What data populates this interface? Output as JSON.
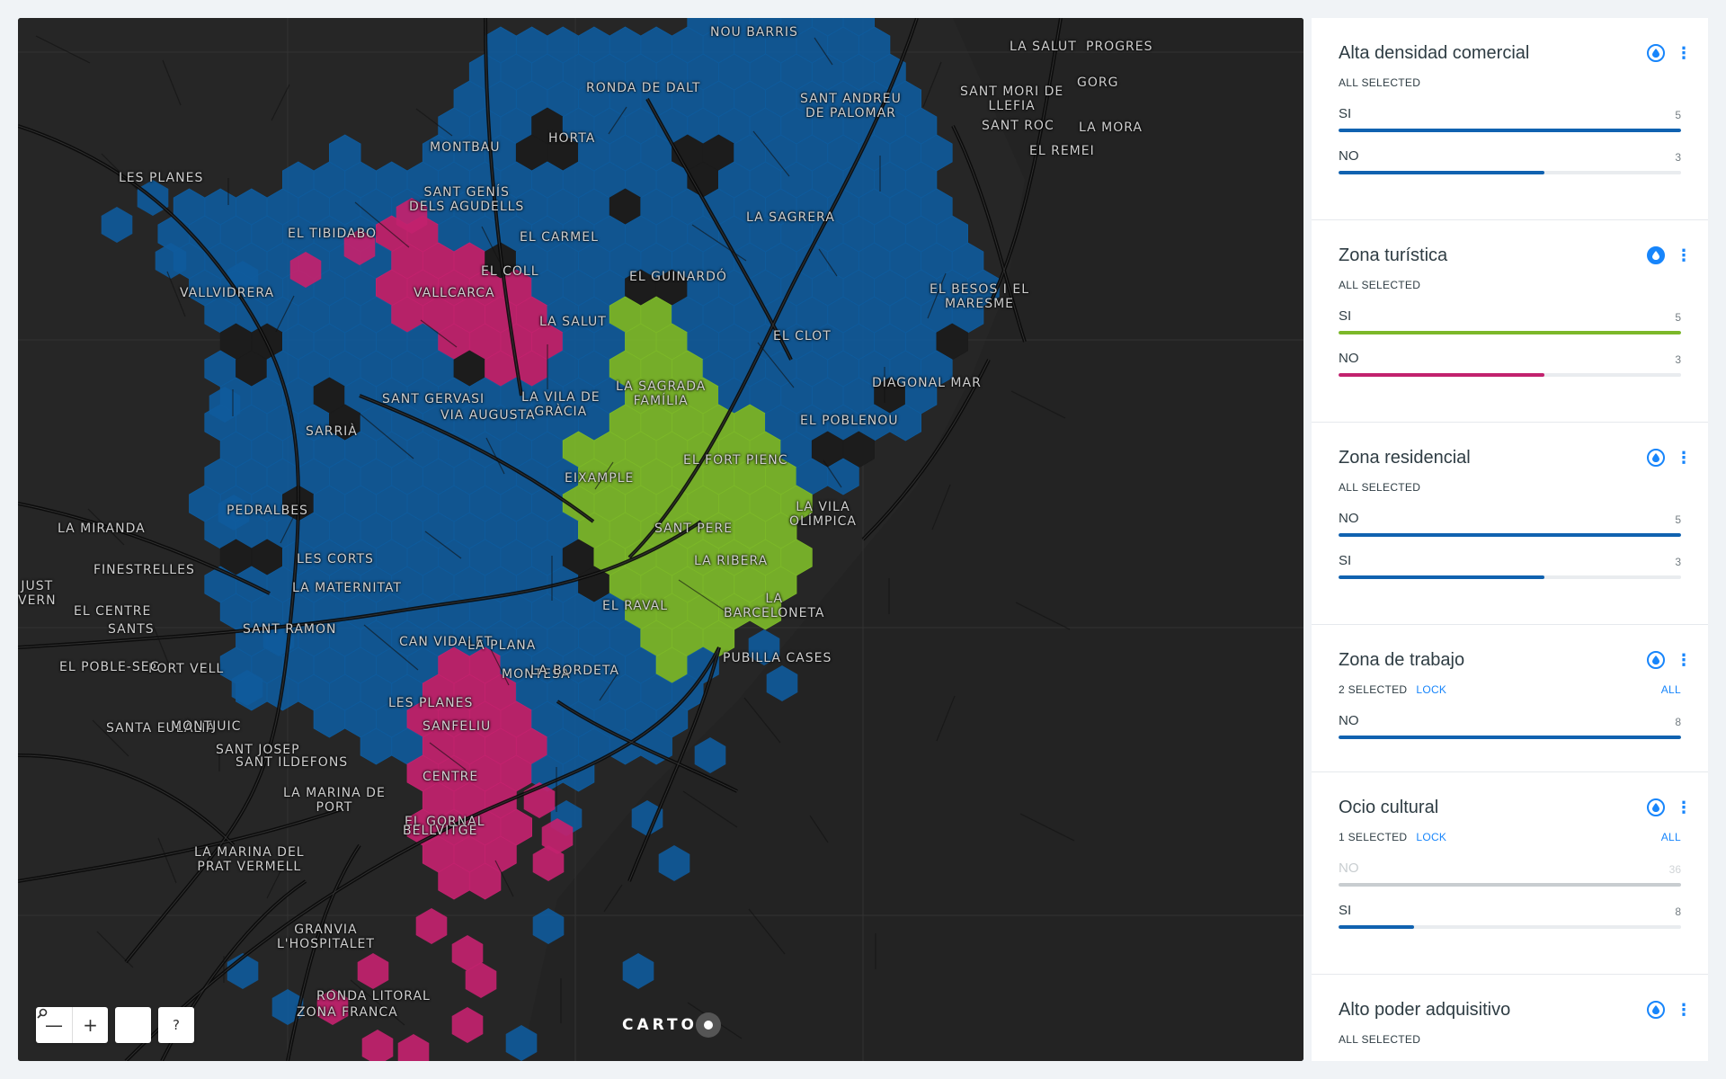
{
  "map": {
    "labels": [
      {
        "text": "NOU BARRIS",
        "lines": [
          "NOU BARRIS"
        ]
      },
      {
        "text": "LA SALUT",
        "lines": [
          "LA SALUT"
        ]
      },
      {
        "text": "PROGRES",
        "lines": [
          "PROGRES"
        ]
      },
      {
        "text": "RONDA DE DALT",
        "lines": [
          "RONDA DE DALT"
        ]
      },
      {
        "text": "SANT ANDREU DE PALOMAR",
        "lines": [
          "SANT ANDREU",
          "DE PALOMAR"
        ]
      },
      {
        "text": "SANT MORI DE LLEFIA",
        "lines": [
          "SANT MORI DE",
          "LLEFIA"
        ]
      },
      {
        "text": "GORG",
        "lines": [
          "GORG"
        ]
      },
      {
        "text": "SANT ROC",
        "lines": [
          "SANT ROC"
        ]
      },
      {
        "text": "LA MORA",
        "lines": [
          "LA MORA"
        ]
      },
      {
        "text": "EL REMEI",
        "lines": [
          "EL REMEI"
        ]
      },
      {
        "text": "MONTBAU",
        "lines": [
          "MONTBAU"
        ]
      },
      {
        "text": "HORTA",
        "lines": [
          "HORTA"
        ]
      },
      {
        "text": "LES PLANES",
        "lines": [
          "LES PLANES"
        ]
      },
      {
        "text": "SANT GENÍS DELS AGUDELLS",
        "lines": [
          "SANT GENÍS",
          "DELS AGUDELLS"
        ]
      },
      {
        "text": "LA SAGRERA",
        "lines": [
          "LA SAGRERA"
        ]
      },
      {
        "text": "EL TIBIDABO",
        "lines": [
          "EL TIBIDABO"
        ]
      },
      {
        "text": "EL CARMEL",
        "lines": [
          "EL CARMEL"
        ]
      },
      {
        "text": "EL COLL",
        "lines": [
          "EL COLL"
        ]
      },
      {
        "text": "EL GUINARDÓ",
        "lines": [
          "EL GUINARDÓ"
        ]
      },
      {
        "text": "VALLVIDRERA",
        "lines": [
          "VALLVIDRERA"
        ]
      },
      {
        "text": "VALLCARCA",
        "lines": [
          "VALLCARCA"
        ]
      },
      {
        "text": "EL BESOS I EL MARESME",
        "lines": [
          "EL BESOS I EL",
          "MARESME"
        ]
      },
      {
        "text": "LA SALUT",
        "lines": [
          "LA SALUT"
        ]
      },
      {
        "text": "EL CLOT",
        "lines": [
          "EL CLOT"
        ]
      },
      {
        "text": "LA SAGRADA FAMÍLIA",
        "lines": [
          "LA SAGRADA",
          "FAMÍLIA"
        ]
      },
      {
        "text": "DIAGONAL MAR",
        "lines": [
          "DIAGONAL MAR"
        ]
      },
      {
        "text": "SANT GERVASI",
        "lines": [
          "SANT GERVASI"
        ]
      },
      {
        "text": "LA VILA DE GRÀCIA",
        "lines": [
          "LA VILA DE",
          "GRÀCIA"
        ]
      },
      {
        "text": "EL POBLENOU",
        "lines": [
          "EL POBLENOU"
        ]
      },
      {
        "text": "SARRIÀ",
        "lines": [
          "SARRIÀ"
        ]
      },
      {
        "text": "VIA AUGUSTA",
        "lines": [
          "VIA AUGUSTA"
        ]
      },
      {
        "text": "EL FORT PIENC",
        "lines": [
          "EL FORT PIENC"
        ]
      },
      {
        "text": "EIXAMPLE",
        "lines": [
          "EIXAMPLE"
        ]
      },
      {
        "text": "PEDRALBES",
        "lines": [
          "PEDRALBES"
        ]
      },
      {
        "text": "LA VILA OLÍMPICA",
        "lines": [
          "LA VILA",
          "OLÍMPICA"
        ]
      },
      {
        "text": "SANT PERE",
        "lines": [
          "SANT PERE"
        ]
      },
      {
        "text": "LA MIRANDA",
        "lines": [
          "LA MIRANDA"
        ]
      },
      {
        "text": "FINESTRELLES",
        "lines": [
          "FINESTRELLES"
        ]
      },
      {
        "text": "LES CORTS",
        "lines": [
          "LES CORTS"
        ]
      },
      {
        "text": "LA RIBERA",
        "lines": [
          "LA RIBERA"
        ]
      },
      {
        "text": "JUST VERN",
        "lines": [
          "JUST",
          "VERN"
        ]
      },
      {
        "text": "LA MATERNITAT",
        "lines": [
          "LA MATERNITAT"
        ]
      },
      {
        "text": "LA BARCELONETA",
        "lines": [
          "LA",
          "BARCELONETA"
        ]
      },
      {
        "text": "EL CENTRE",
        "lines": [
          "EL CENTRE"
        ]
      },
      {
        "text": "EL RAVAL",
        "lines": [
          "EL RAVAL"
        ]
      },
      {
        "text": "SANT RAMON",
        "lines": [
          "SANT RAMON"
        ]
      },
      {
        "text": "CAN VIDALET",
        "lines": [
          "CAN VIDALET"
        ]
      },
      {
        "text": "SANTS",
        "lines": [
          "SANTS"
        ]
      },
      {
        "text": "PORT VELL",
        "lines": [
          "PORT VELL"
        ]
      },
      {
        "text": "LA PLANA",
        "lines": [
          "LA PLANA"
        ]
      },
      {
        "text": "PUBILLA CASES",
        "lines": [
          "PUBILLA CASES"
        ]
      },
      {
        "text": "EL POBLE-SEC",
        "lines": [
          "EL POBLE-SEC"
        ]
      },
      {
        "text": "MONTESA",
        "lines": [
          "MONTESA"
        ]
      },
      {
        "text": "LA BORDETA",
        "lines": [
          "LA BORDETA"
        ]
      },
      {
        "text": "LES PLANES",
        "lines": [
          "LES PLANES"
        ]
      },
      {
        "text": "SANFELIU",
        "lines": [
          "SANFELIU"
        ]
      },
      {
        "text": "SANTA EULÀLIA",
        "lines": [
          "SANTA EULÀLIA"
        ]
      },
      {
        "text": "MONTJUIC",
        "lines": [
          "MONTJUIC"
        ]
      },
      {
        "text": "SANT JOSEP",
        "lines": [
          "SANT JOSEP"
        ]
      },
      {
        "text": "SANT ILDEFONS",
        "lines": [
          "SANT ILDEFONS"
        ]
      },
      {
        "text": "CENTRE",
        "lines": [
          "CENTRE"
        ]
      },
      {
        "text": "LA MARINA DE PORT",
        "lines": [
          "LA MARINA DE",
          "PORT"
        ]
      },
      {
        "text": "EL GORNAL",
        "lines": [
          "EL GORNAL"
        ]
      },
      {
        "text": "LA MARINA DEL PRAT VERMELL",
        "lines": [
          "LA MARINA DEL",
          "PRAT VERMELL"
        ]
      },
      {
        "text": "BELLVITGE",
        "lines": [
          "BELLVITGE"
        ]
      },
      {
        "text": "GRANVIA L'HOSPITALET",
        "lines": [
          "GRANVIA",
          "L'HOSPITALET"
        ]
      },
      {
        "text": "RONDA LITORAL",
        "lines": [
          "RONDA LITORAL"
        ]
      },
      {
        "text": "ZONA FRANCA",
        "lines": [
          "ZONA FRANCA"
        ]
      }
    ],
    "colors": {
      "base": "#262626",
      "blue": "#0f5b9c",
      "green": "#7cb829",
      "pink": "#c2226e"
    },
    "controls": {
      "zoom_out": "—",
      "zoom_in": "+",
      "search": "⚲",
      "help": "?"
    },
    "attribution": "CARTO"
  },
  "widgets": [
    {
      "title": "Alta densidad comercial",
      "status": "ALL SELECTED",
      "icon": "drop-outline",
      "categories": [
        {
          "label": "SI",
          "count": "5",
          "fraction": 1.0,
          "color": "#1062b0"
        },
        {
          "label": "NO",
          "count": "3",
          "fraction": 0.6,
          "color": "#1062b0"
        }
      ]
    },
    {
      "title": "Zona turística",
      "status": "ALL SELECTED",
      "icon": "drop-filled",
      "categories": [
        {
          "label": "SI",
          "count": "5",
          "fraction": 1.0,
          "color": "#7cb829"
        },
        {
          "label": "NO",
          "count": "3",
          "fraction": 0.6,
          "color": "#c2226e"
        }
      ]
    },
    {
      "title": "Zona residencial",
      "status": "ALL SELECTED",
      "icon": "drop-outline",
      "categories": [
        {
          "label": "NO",
          "count": "5",
          "fraction": 1.0,
          "color": "#1062b0"
        },
        {
          "label": "SI",
          "count": "3",
          "fraction": 0.6,
          "color": "#1062b0"
        }
      ]
    },
    {
      "title": "Zona de trabajo",
      "status": "2 SELECTED",
      "lock": "LOCK",
      "all": "ALL",
      "icon": "drop-outline",
      "categories": [
        {
          "label": "NO",
          "count": "8",
          "fraction": 1.0,
          "color": "#1062b0"
        }
      ]
    },
    {
      "title": "Ocio cultural",
      "status": "1 SELECTED",
      "lock": "LOCK",
      "all": "ALL",
      "icon": "drop-outline",
      "categories": [
        {
          "label": "NO",
          "count": "36",
          "fraction": 1.0,
          "color": "#c8cdd0",
          "dim": true
        },
        {
          "label": "SI",
          "count": "8",
          "fraction": 0.22,
          "color": "#1062b0"
        }
      ]
    },
    {
      "title": "Alto poder adquisitivo",
      "status": "ALL SELECTED",
      "icon": "drop-outline",
      "categories": []
    }
  ]
}
